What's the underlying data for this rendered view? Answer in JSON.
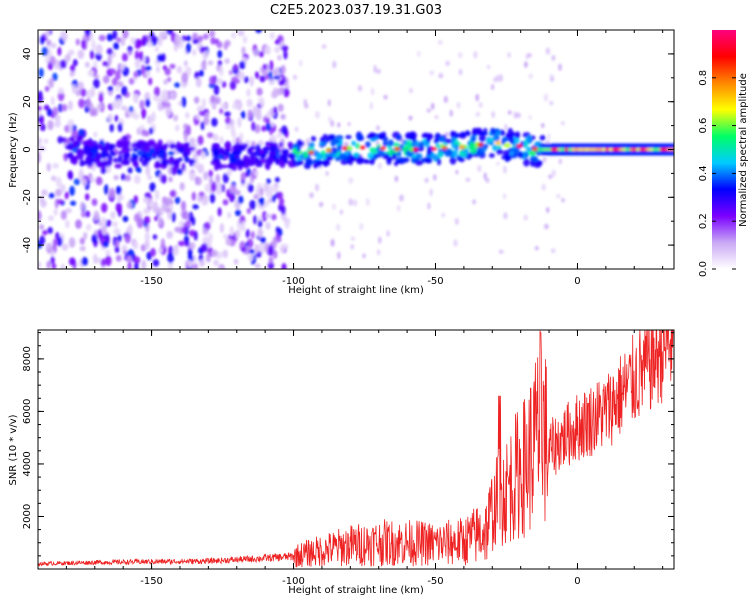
{
  "title": "C2E5.2023.037.19.31.G03",
  "chart_data": [
    {
      "type": "heatmap",
      "name": "spectrogram",
      "xlabel": "Height of straight line (km)",
      "ylabel": "Frequency (Hz)",
      "xlim": [
        -190,
        34
      ],
      "ylim": [
        -50,
        50
      ],
      "xticks": [
        -150,
        -100,
        -50,
        0
      ],
      "yticks": [
        -40,
        -20,
        0,
        20,
        40
      ],
      "xtick_labels": [
        "-150",
        "-100",
        "-50",
        "0"
      ],
      "ytick_labels": [
        "-40",
        "-20",
        "0",
        "20",
        "40"
      ],
      "colorbar": {
        "label": "Normalized spectral amplitude",
        "range": [
          0,
          1
        ],
        "ticks": [
          0.0,
          0.2,
          0.4,
          0.6,
          0.8
        ],
        "tick_labels": [
          "0.0",
          "0.2",
          "0.4",
          "0.6",
          "0.8"
        ],
        "colors": [
          "#ffffff",
          "#c9a8f5",
          "#7a00ff",
          "#0000ff",
          "#00ccff",
          "#00ff66",
          "#ffff00",
          "#ff8800",
          "#ff0000",
          "#ff0080"
        ]
      },
      "regions": [
        {
          "x_range": [
            -190,
            -130
          ],
          "description": "broadband scattered noise",
          "amplitude": 0.15
        },
        {
          "x_range": [
            -130,
            -103
          ],
          "description": "scattered noise with signal near 0 Hz",
          "amplitude": 0.2
        },
        {
          "x_range": [
            -103,
            -12
          ],
          "description": "signal band around 0-5 Hz",
          "amplitude": 0.45
        },
        {
          "x_range": [
            -12,
            34
          ],
          "description": "strong narrow line at 0 Hz",
          "amplitude": 0.9
        }
      ],
      "ridge": [
        {
          "x": -175,
          "y": -2
        },
        {
          "x": -150,
          "y": -2
        },
        {
          "x": -125,
          "y": -3
        },
        {
          "x": -100,
          "y": -2
        },
        {
          "x": -80,
          "y": 1
        },
        {
          "x": -60,
          "y": 0
        },
        {
          "x": -40,
          "y": 1
        },
        {
          "x": -30,
          "y": 3
        },
        {
          "x": -20,
          "y": 1
        },
        {
          "x": -12,
          "y": -1
        },
        {
          "x": 0,
          "y": 0
        },
        {
          "x": 34,
          "y": 0
        }
      ]
    },
    {
      "type": "line",
      "name": "snr",
      "xlabel": "Height of straight line (km)",
      "ylabel": "SNR (10 * v/v)",
      "xlim": [
        -190,
        34
      ],
      "ylim": [
        0,
        9100
      ],
      "xticks": [
        -150,
        -100,
        -50,
        0
      ],
      "yticks": [
        2000,
        4000,
        6000,
        8000
      ],
      "xtick_labels": [
        "-150",
        "-100",
        "-50",
        "0"
      ],
      "ytick_labels": [
        "2000",
        "4000",
        "6000",
        "8000"
      ],
      "color": "#ee2222",
      "series": [
        {
          "name": "SNR",
          "x": [
            -190,
            -170,
            -150,
            -130,
            -115,
            -100,
            -95,
            -90,
            -80,
            -70,
            -60,
            -50,
            -40,
            -32,
            -28,
            -25,
            -22,
            -18,
            -15,
            -13,
            -10,
            -5,
            0,
            10,
            20,
            30,
            34
          ],
          "y": [
            200,
            250,
            280,
            300,
            380,
            480,
            600,
            700,
            900,
            1000,
            1000,
            950,
            1050,
            1500,
            2700,
            3000,
            3500,
            4000,
            4800,
            5500,
            4500,
            5000,
            5400,
            6000,
            7200,
            8400,
            8800
          ]
        }
      ]
    }
  ]
}
